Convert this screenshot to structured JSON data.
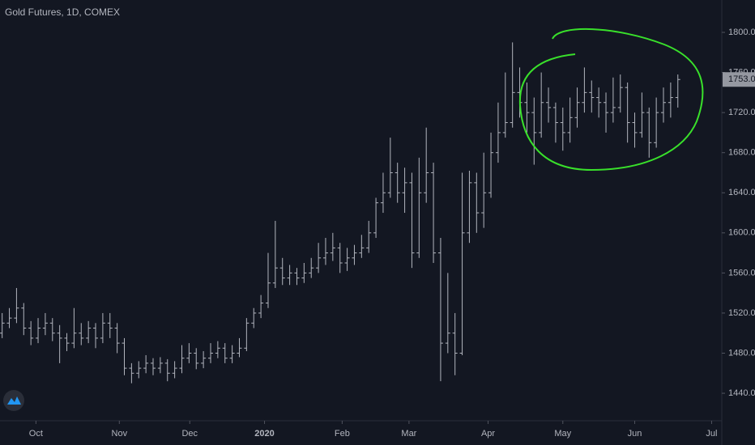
{
  "chart_data": {
    "type": "ohlc",
    "title": "Gold Futures, 1D, COMEX",
    "color": "#b2b5be",
    "open": [
      1500,
      1510,
      1515,
      1525,
      1505,
      1495,
      1505,
      1510,
      1500,
      1495,
      1490,
      1500,
      1495,
      1505,
      1495,
      1510,
      1505,
      1490,
      1465,
      1460,
      1465,
      1470,
      1465,
      1470,
      1460,
      1465,
      1475,
      1480,
      1470,
      1475,
      1480,
      1485,
      1475,
      1480,
      1485,
      1510,
      1520,
      1530,
      1550,
      1565,
      1555,
      1560,
      1555,
      1560,
      1565,
      1575,
      1580,
      1585,
      1570,
      1575,
      1580,
      1585,
      1600,
      1630,
      1640,
      1660,
      1640,
      1650,
      1580,
      1640,
      1660,
      1580,
      1490,
      1500,
      1480,
      1600,
      1650,
      1620,
      1640,
      1680,
      1700,
      1710,
      1740,
      1730,
      1720,
      1700,
      1730,
      1725,
      1710,
      1700,
      1715,
      1730,
      1740,
      1735,
      1730,
      1720,
      1725,
      1745,
      1710,
      1700,
      1720,
      1690,
      1720,
      1730,
      1735
    ],
    "high": [
      1520,
      1525,
      1545,
      1530,
      1512,
      1515,
      1520,
      1515,
      1508,
      1500,
      1525,
      1510,
      1512,
      1510,
      1520,
      1520,
      1510,
      1495,
      1470,
      1472,
      1478,
      1475,
      1476,
      1474,
      1472,
      1488,
      1490,
      1485,
      1482,
      1490,
      1492,
      1490,
      1488,
      1495,
      1515,
      1525,
      1538,
      1580,
      1612,
      1575,
      1568,
      1565,
      1570,
      1575,
      1590,
      1595,
      1600,
      1590,
      1585,
      1588,
      1598,
      1612,
      1635,
      1660,
      1695,
      1670,
      1665,
      1660,
      1675,
      1705,
      1670,
      1595,
      1560,
      1520,
      1660,
      1662,
      1660,
      1680,
      1700,
      1730,
      1760,
      1790,
      1765,
      1750,
      1735,
      1760,
      1745,
      1730,
      1725,
      1735,
      1745,
      1765,
      1752,
      1745,
      1740,
      1755,
      1758,
      1750,
      1720,
      1740,
      1725,
      1735,
      1745,
      1750,
      1758
    ],
    "low": [
      1495,
      1505,
      1510,
      1498,
      1488,
      1490,
      1498,
      1492,
      1470,
      1482,
      1485,
      1488,
      1490,
      1485,
      1490,
      1495,
      1480,
      1458,
      1450,
      1455,
      1460,
      1458,
      1460,
      1452,
      1455,
      1460,
      1470,
      1464,
      1465,
      1470,
      1475,
      1470,
      1470,
      1476,
      1482,
      1505,
      1515,
      1525,
      1545,
      1548,
      1548,
      1548,
      1550,
      1555,
      1560,
      1568,
      1572,
      1560,
      1562,
      1568,
      1575,
      1580,
      1595,
      1620,
      1635,
      1630,
      1620,
      1565,
      1575,
      1630,
      1570,
      1452,
      1480,
      1458,
      1478,
      1590,
      1600,
      1605,
      1635,
      1670,
      1695,
      1705,
      1715,
      1700,
      1668,
      1695,
      1710,
      1690,
      1682,
      1690,
      1705,
      1720,
      1720,
      1715,
      1700,
      1710,
      1720,
      1690,
      1685,
      1695,
      1675,
      1685,
      1710,
      1715,
      1725
    ],
    "close": [
      1510,
      1515,
      1525,
      1505,
      1495,
      1505,
      1510,
      1500,
      1495,
      1490,
      1500,
      1495,
      1505,
      1495,
      1510,
      1505,
      1490,
      1465,
      1460,
      1465,
      1470,
      1465,
      1470,
      1460,
      1465,
      1475,
      1480,
      1470,
      1475,
      1480,
      1485,
      1475,
      1480,
      1485,
      1510,
      1520,
      1530,
      1550,
      1565,
      1555,
      1560,
      1555,
      1560,
      1565,
      1575,
      1580,
      1585,
      1570,
      1575,
      1580,
      1585,
      1600,
      1630,
      1640,
      1660,
      1640,
      1650,
      1580,
      1640,
      1660,
      1580,
      1490,
      1500,
      1480,
      1600,
      1650,
      1620,
      1640,
      1680,
      1700,
      1710,
      1740,
      1730,
      1720,
      1700,
      1730,
      1725,
      1710,
      1700,
      1715,
      1730,
      1740,
      1735,
      1730,
      1720,
      1725,
      1745,
      1710,
      1700,
      1720,
      1690,
      1720,
      1730,
      1735,
      1753
    ],
    "last_price": {
      "value": 1753,
      "label": "1753.0"
    },
    "xlim": [
      -0.3,
      100
    ],
    "xticks": [
      {
        "value": 4.7,
        "label": "Oct"
      },
      {
        "value": 16.3,
        "label": "Nov"
      },
      {
        "value": 26.1,
        "label": "Dec"
      },
      {
        "value": 36.5,
        "label": "2020"
      },
      {
        "value": 47.3,
        "label": "Feb"
      },
      {
        "value": 56.6,
        "label": "Mar"
      },
      {
        "value": 67.6,
        "label": "Apr"
      },
      {
        "value": 78.0,
        "label": "May"
      },
      {
        "value": 88.0,
        "label": "Jun"
      },
      {
        "value": 98.7,
        "label": "Jul"
      }
    ],
    "ylim": [
      1412.6,
      1832.3
    ],
    "yticks": [
      {
        "value": 1440,
        "label": "1440.0"
      },
      {
        "value": 1480,
        "label": "1480.0"
      },
      {
        "value": 1520,
        "label": "1520.0"
      },
      {
        "value": 1560,
        "label": "1560.0"
      },
      {
        "value": 1600,
        "label": "1600.0"
      },
      {
        "value": 1640,
        "label": "1640.0"
      },
      {
        "value": 1680,
        "label": "1680.0"
      },
      {
        "value": 1720,
        "label": "1720.0"
      },
      {
        "value": 1760,
        "label": "1760.0"
      },
      {
        "value": 1800,
        "label": "1800.0"
      }
    ]
  }
}
